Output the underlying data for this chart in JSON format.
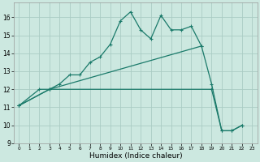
{
  "xlabel": "Humidex (Indice chaleur)",
  "background_color": "#cce8e0",
  "grid_color": "#aaccc4",
  "line_color": "#1a7a6a",
  "xlim": [
    -0.5,
    23.5
  ],
  "ylim": [
    9,
    16.8
  ],
  "yticks": [
    9,
    10,
    11,
    12,
    13,
    14,
    15,
    16
  ],
  "xticks": [
    0,
    1,
    2,
    3,
    4,
    5,
    6,
    7,
    8,
    9,
    10,
    11,
    12,
    13,
    14,
    15,
    16,
    17,
    18,
    19,
    20,
    21,
    22,
    23
  ],
  "line1_x": [
    0,
    2,
    3,
    4,
    5,
    6,
    7,
    8,
    9,
    10,
    11,
    12,
    13,
    14,
    15,
    16,
    17,
    18,
    19,
    20,
    21,
    22
  ],
  "line1_y": [
    11.1,
    12.0,
    12.0,
    12.3,
    12.8,
    12.8,
    13.5,
    13.8,
    14.5,
    15.8,
    16.3,
    15.3,
    14.8,
    16.1,
    15.3,
    15.3,
    15.5,
    14.4,
    12.3,
    9.7,
    9.7,
    10.0
  ],
  "line2_x": [
    0,
    3,
    18
  ],
  "line2_y": [
    11.1,
    12.0,
    14.4
  ],
  "line3_x": [
    0,
    3,
    19,
    20,
    21,
    22
  ],
  "line3_y": [
    11.1,
    12.0,
    12.0,
    9.7,
    9.7,
    10.0
  ]
}
